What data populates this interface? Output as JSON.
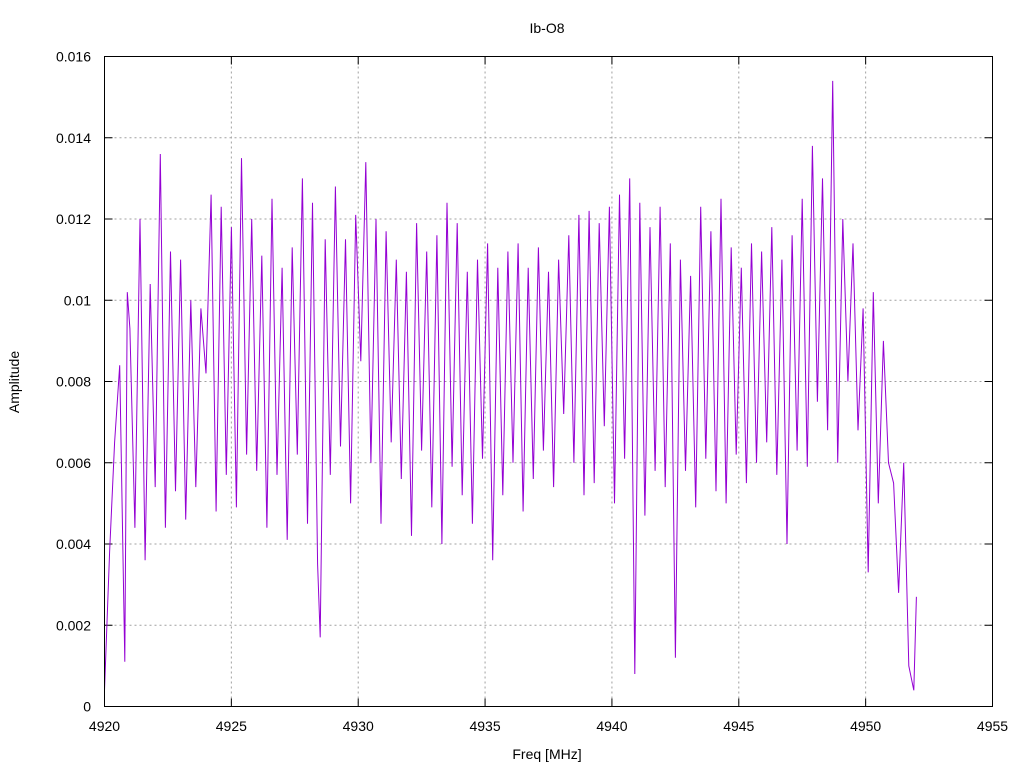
{
  "chart_data": {
    "type": "line",
    "title": "Ib-O8",
    "xlabel": "Freq [MHz]",
    "ylabel": "Amplitude",
    "xlim": [
      4920,
      4955
    ],
    "ylim": [
      0,
      0.016
    ],
    "x_ticks": [
      4920,
      4925,
      4930,
      4935,
      4940,
      4945,
      4950,
      4955
    ],
    "x_tick_labels": [
      "4920",
      "4925",
      "4930",
      "4935",
      "4940",
      "4945",
      "4950",
      "4955"
    ],
    "y_ticks": [
      0,
      0.002,
      0.004,
      0.006,
      0.008,
      0.01,
      0.012,
      0.014,
      0.016
    ],
    "y_tick_labels": [
      "0",
      "0.002",
      "0.004",
      "0.006",
      "0.008",
      "0.01",
      "0.012",
      "0.014",
      "0.016"
    ],
    "grid": true,
    "series": [
      {
        "color": "#9400d3",
        "x": [
          4920.0,
          4920.2,
          4920.4,
          4920.6,
          4920.8,
          4920.9,
          4921.0,
          4921.2,
          4921.4,
          4921.6,
          4921.8,
          4922.0,
          4922.2,
          4922.4,
          4922.6,
          4922.8,
          4923.0,
          4923.2,
          4923.4,
          4923.6,
          4923.8,
          4924.0,
          4924.2,
          4924.4,
          4924.6,
          4924.8,
          4925.0,
          4925.2,
          4925.4,
          4925.6,
          4925.8,
          4926.0,
          4926.2,
          4926.4,
          4926.6,
          4926.8,
          4927.0,
          4927.2,
          4927.4,
          4927.6,
          4927.8,
          4928.0,
          4928.2,
          4928.4,
          4928.5,
          4928.7,
          4928.9,
          4929.1,
          4929.3,
          4929.5,
          4929.7,
          4929.9,
          4930.1,
          4930.3,
          4930.5,
          4930.7,
          4930.9,
          4931.1,
          4931.3,
          4931.5,
          4931.7,
          4931.9,
          4932.1,
          4932.3,
          4932.5,
          4932.7,
          4932.9,
          4933.1,
          4933.3,
          4933.5,
          4933.7,
          4933.9,
          4934.1,
          4934.3,
          4934.5,
          4934.7,
          4934.9,
          4935.1,
          4935.3,
          4935.5,
          4935.7,
          4935.9,
          4936.1,
          4936.3,
          4936.5,
          4936.7,
          4936.9,
          4937.1,
          4937.3,
          4937.5,
          4937.7,
          4937.9,
          4938.1,
          4938.3,
          4938.5,
          4938.7,
          4938.9,
          4939.1,
          4939.3,
          4939.5,
          4939.7,
          4939.9,
          4940.1,
          4940.3,
          4940.5,
          4940.7,
          4940.9,
          4941.1,
          4941.3,
          4941.5,
          4941.7,
          4941.9,
          4942.1,
          4942.3,
          4942.5,
          4942.7,
          4942.9,
          4943.1,
          4943.3,
          4943.5,
          4943.7,
          4943.9,
          4944.1,
          4944.3,
          4944.5,
          4944.7,
          4944.9,
          4945.1,
          4945.3,
          4945.5,
          4945.7,
          4945.9,
          4946.1,
          4946.3,
          4946.5,
          4946.7,
          4946.9,
          4947.1,
          4947.3,
          4947.5,
          4947.7,
          4947.9,
          4948.1,
          4948.3,
          4948.5,
          4948.7,
          4948.9,
          4949.1,
          4949.3,
          4949.5,
          4949.7,
          4949.9,
          4950.1,
          4950.3,
          4950.5,
          4950.7,
          4950.9,
          4951.1,
          4951.3,
          4951.5,
          4951.7,
          4951.9,
          4952.0
        ],
        "y": [
          0.0004,
          0.0038,
          0.0065,
          0.0084,
          0.0011,
          0.0102,
          0.0093,
          0.0044,
          0.012,
          0.0036,
          0.0104,
          0.0054,
          0.0136,
          0.0044,
          0.0112,
          0.0053,
          0.011,
          0.0046,
          0.01,
          0.0054,
          0.0098,
          0.0082,
          0.0126,
          0.0048,
          0.0123,
          0.0057,
          0.0118,
          0.0049,
          0.0135,
          0.0062,
          0.012,
          0.0058,
          0.0111,
          0.0044,
          0.0125,
          0.0057,
          0.0108,
          0.0041,
          0.0113,
          0.0062,
          0.013,
          0.0045,
          0.0124,
          0.0035,
          0.0017,
          0.0115,
          0.0057,
          0.0128,
          0.0064,
          0.0115,
          0.005,
          0.0121,
          0.0085,
          0.0134,
          0.006,
          0.012,
          0.0045,
          0.0117,
          0.0065,
          0.011,
          0.0056,
          0.0107,
          0.0042,
          0.0119,
          0.0063,
          0.0112,
          0.0049,
          0.0116,
          0.004,
          0.0124,
          0.0059,
          0.0119,
          0.0052,
          0.0107,
          0.0045,
          0.011,
          0.0061,
          0.0114,
          0.0036,
          0.0108,
          0.0052,
          0.0112,
          0.006,
          0.0114,
          0.0048,
          0.0108,
          0.0056,
          0.0113,
          0.0063,
          0.0107,
          0.0054,
          0.011,
          0.0072,
          0.0116,
          0.006,
          0.0121,
          0.0052,
          0.0122,
          0.0055,
          0.0119,
          0.0069,
          0.0123,
          0.005,
          0.0126,
          0.0061,
          0.013,
          0.0008,
          0.0124,
          0.0047,
          0.0118,
          0.0058,
          0.0123,
          0.0054,
          0.0114,
          0.0012,
          0.011,
          0.0058,
          0.0106,
          0.0049,
          0.0123,
          0.0061,
          0.0117,
          0.0053,
          0.0125,
          0.005,
          0.0113,
          0.0062,
          0.0108,
          0.0055,
          0.0114,
          0.006,
          0.0112,
          0.0065,
          0.0118,
          0.0057,
          0.011,
          0.004,
          0.0116,
          0.0063,
          0.0125,
          0.0059,
          0.0138,
          0.0075,
          0.013,
          0.0068,
          0.0154,
          0.006,
          0.012,
          0.008,
          0.0114,
          0.0068,
          0.0098,
          0.0033,
          0.0102,
          0.005,
          0.009,
          0.006,
          0.0055,
          0.0028,
          0.006,
          0.001,
          0.0004,
          0.0027
        ]
      }
    ]
  }
}
